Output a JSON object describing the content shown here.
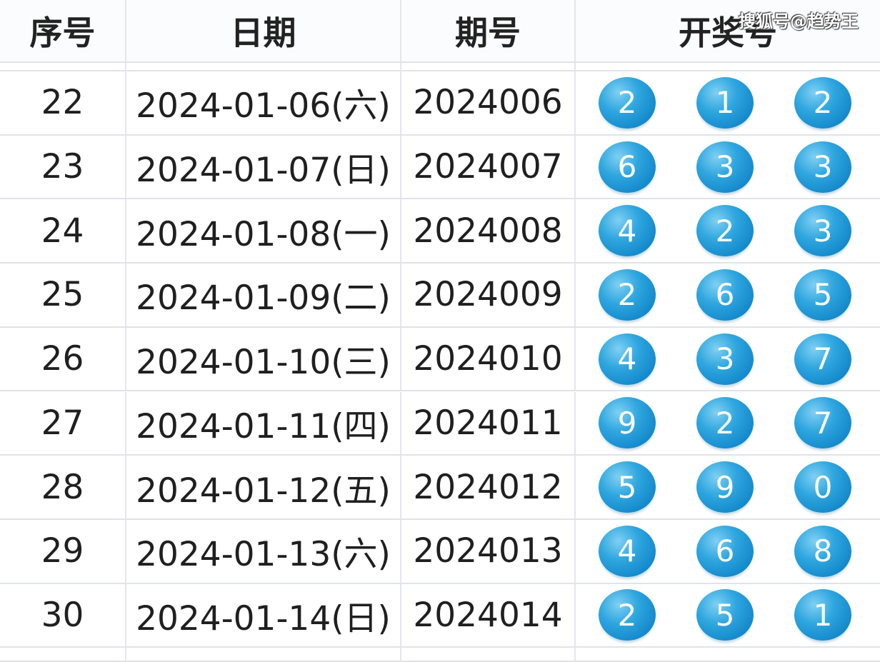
{
  "header": {
    "index": "序号",
    "date": "日期",
    "issue": "期号",
    "numbers": "开奖号"
  },
  "watermark": "搜狐号@趋势王",
  "ball_color": "#2ea6df",
  "rows": [
    {
      "index": "22",
      "date": "2024-01-06(六)",
      "issue": "2024006",
      "balls": [
        "2",
        "1",
        "2"
      ]
    },
    {
      "index": "23",
      "date": "2024-01-07(日)",
      "issue": "2024007",
      "balls": [
        "6",
        "3",
        "3"
      ]
    },
    {
      "index": "24",
      "date": "2024-01-08(一)",
      "issue": "2024008",
      "balls": [
        "4",
        "2",
        "3"
      ]
    },
    {
      "index": "25",
      "date": "2024-01-09(二)",
      "issue": "2024009",
      "balls": [
        "2",
        "6",
        "5"
      ]
    },
    {
      "index": "26",
      "date": "2024-01-10(三)",
      "issue": "2024010",
      "balls": [
        "4",
        "3",
        "7"
      ]
    },
    {
      "index": "27",
      "date": "2024-01-11(四)",
      "issue": "2024011",
      "balls": [
        "9",
        "2",
        "7"
      ]
    },
    {
      "index": "28",
      "date": "2024-01-12(五)",
      "issue": "2024012",
      "balls": [
        "5",
        "9",
        "0"
      ]
    },
    {
      "index": "29",
      "date": "2024-01-13(六)",
      "issue": "2024013",
      "balls": [
        "4",
        "6",
        "8"
      ]
    },
    {
      "index": "30",
      "date": "2024-01-14(日)",
      "issue": "2024014",
      "balls": [
        "2",
        "5",
        "1"
      ]
    }
  ]
}
